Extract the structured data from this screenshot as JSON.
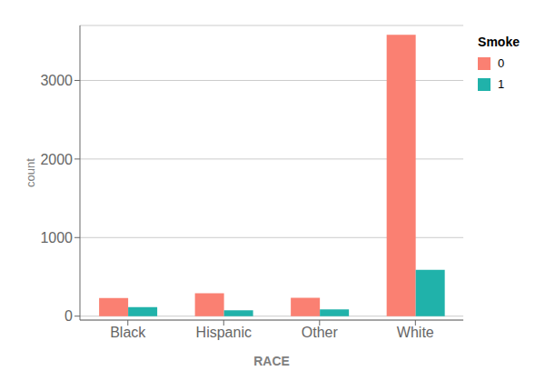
{
  "chart_data": {
    "type": "bar",
    "categories": [
      "Black",
      "Hispanic",
      "Other",
      "White"
    ],
    "series": [
      {
        "name": "0",
        "color": "#FA8072",
        "values": [
          230,
          290,
          235,
          3580
        ]
      },
      {
        "name": "1",
        "color": "#20B2AA",
        "values": [
          115,
          75,
          85,
          590
        ]
      }
    ],
    "xlabel": "RACE",
    "ylabel": "count",
    "legend_title": "Smoke",
    "legend": "right",
    "ylim": [
      -50,
      3700
    ],
    "yticks": [
      0,
      1000,
      2000,
      3000
    ],
    "grid": true
  }
}
